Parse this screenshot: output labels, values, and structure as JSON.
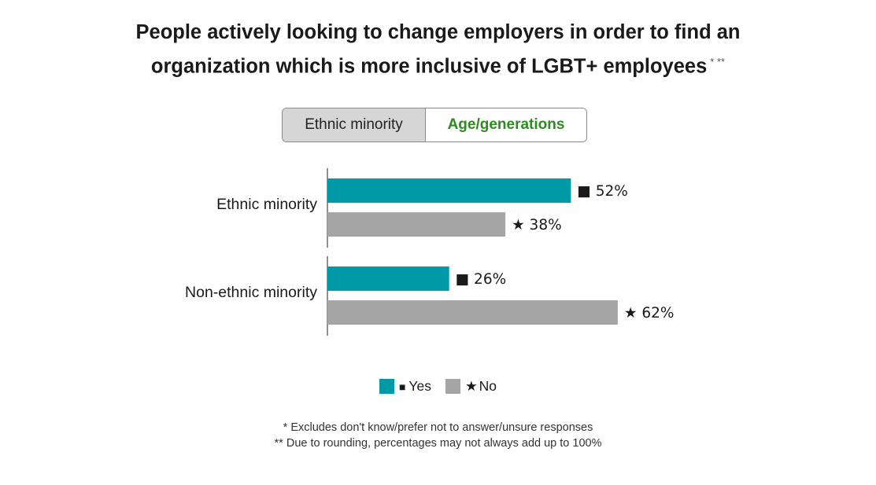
{
  "title": {
    "line1": "People actively looking to change employers in order to find an",
    "line2": "organization which is more inclusive of LGBT+ employees",
    "superscript": "* **"
  },
  "toggle": {
    "options": [
      "Ethnic minority",
      "Age/generations"
    ],
    "selected": "Age/generations"
  },
  "colors": {
    "yes": "#0099a8",
    "no": "#a6a6a7",
    "axis": "#555555",
    "selected_toggle_text": "#2e8b23",
    "toggle_inactive_bg": "#d6d6d6"
  },
  "chart_data": {
    "type": "bar",
    "orientation": "horizontal",
    "categories": [
      "Ethnic minority",
      "Non-ethnic minority"
    ],
    "series": [
      {
        "name": "Yes",
        "marker": "■",
        "values": [
          52,
          26
        ],
        "labels": [
          "52%",
          "26%"
        ]
      },
      {
        "name": "No",
        "marker": "★",
        "values": [
          38,
          62
        ],
        "labels": [
          "38%",
          "62%"
        ]
      }
    ],
    "value_unit": "%",
    "xlim": [
      0,
      100
    ],
    "grid": false,
    "legend_position": "bottom-center"
  },
  "legend": {
    "items": [
      {
        "marker": "■",
        "label": "Yes"
      },
      {
        "marker": "★",
        "label": "No"
      }
    ]
  },
  "footnotes": [
    "* Excludes don't know/prefer not to answer/unsure responses",
    "** Due to rounding, percentages may not always add up to 100%"
  ]
}
